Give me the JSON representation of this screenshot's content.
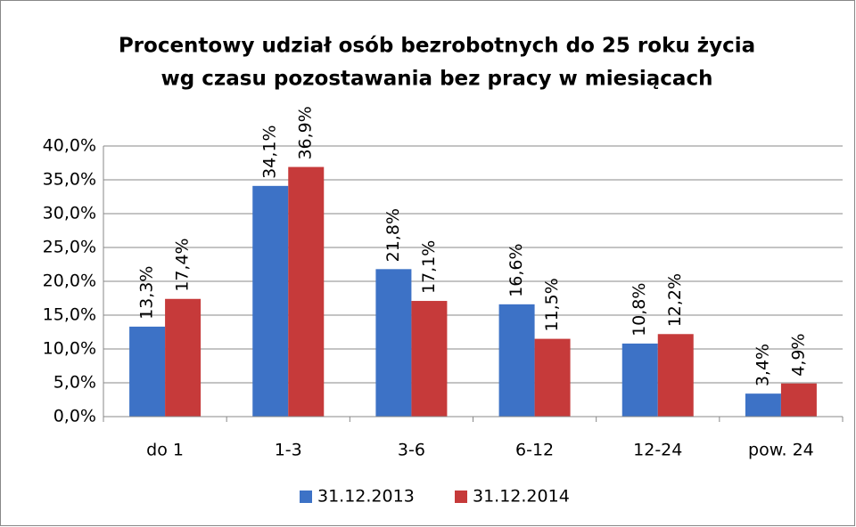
{
  "chart_data": {
    "type": "bar",
    "title": [
      "Procentowy udział osób bezrobotnych do 25 roku życia",
      "wg czasu pozostawania bez pracy w miesiącach"
    ],
    "categories": [
      "do 1",
      "1-3",
      "3-6",
      "6-12",
      "12-24",
      "pow. 24"
    ],
    "series": [
      {
        "name": "31.12.2013",
        "color": "#3d72c6",
        "values": [
          13.3,
          34.1,
          21.8,
          16.6,
          10.8,
          3.4
        ],
        "value_labels": [
          "13,3%",
          "34,1%",
          "21,8%",
          "16,6%",
          "10,8%",
          "3,4%"
        ]
      },
      {
        "name": "31.12.2014",
        "color": "#c63a3a",
        "values": [
          17.4,
          36.9,
          17.1,
          11.5,
          12.2,
          4.9
        ],
        "value_labels": [
          "17,4%",
          "36,9%",
          "17,1%",
          "11,5%",
          "12,2%",
          "4,9%"
        ]
      }
    ],
    "ylim": [
      0,
      40
    ],
    "yticks": [
      {
        "value": 0,
        "label": "0,0%"
      },
      {
        "value": 5,
        "label": "5,0%"
      },
      {
        "value": 10,
        "label": "10,0%"
      },
      {
        "value": 15,
        "label": "15,0%"
      },
      {
        "value": 20,
        "label": "20,0%"
      },
      {
        "value": 25,
        "label": "25,0%"
      },
      {
        "value": 30,
        "label": "30,0%"
      },
      {
        "value": 35,
        "label": "35,0%"
      },
      {
        "value": 40,
        "label": "40,0%"
      }
    ],
    "grid": true,
    "legend": "bottom"
  }
}
